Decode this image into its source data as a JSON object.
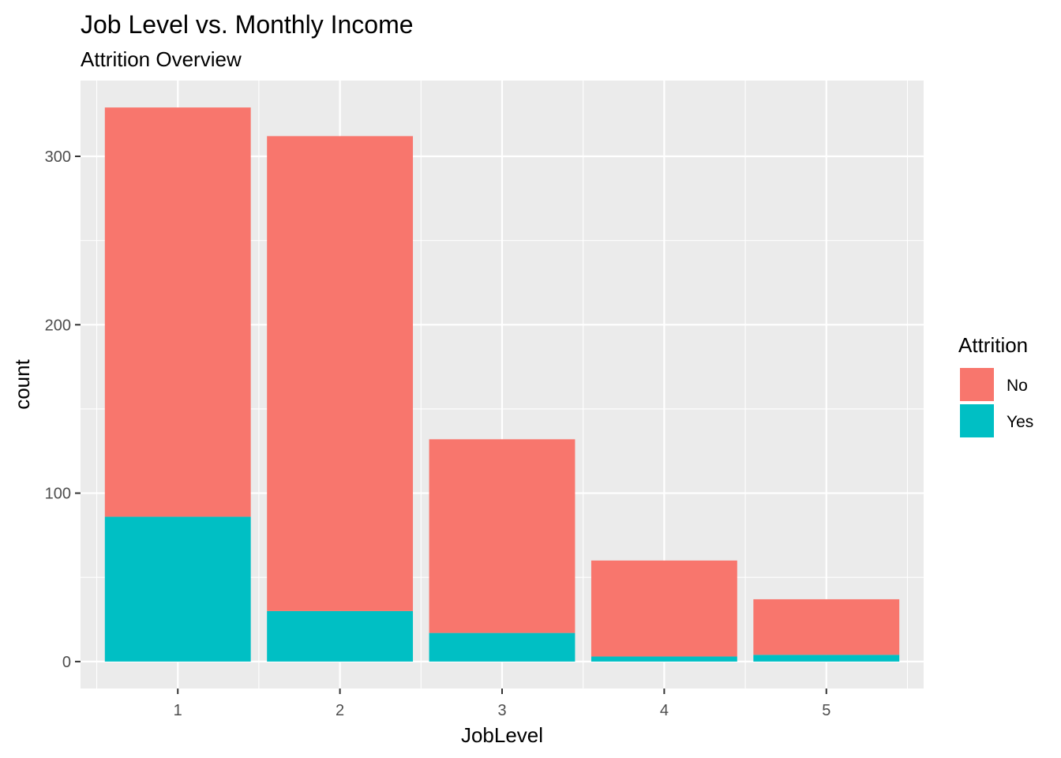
{
  "chart_data": {
    "type": "bar",
    "stacked": true,
    "title": "Job Level vs. Monthly Income",
    "subtitle": "Attrition Overview",
    "xlabel": "JobLevel",
    "ylabel": "count",
    "categories": [
      "1",
      "2",
      "3",
      "4",
      "5"
    ],
    "series": [
      {
        "name": "No",
        "color": "#F8766D",
        "values": [
          243,
          282,
          115,
          57,
          33
        ]
      },
      {
        "name": "Yes",
        "color": "#00BFC4",
        "values": [
          86,
          30,
          17,
          3,
          4
        ]
      }
    ],
    "ylim": [
      -16,
      345
    ],
    "yticks": [
      0,
      100,
      200,
      300
    ],
    "ytick_labels": [
      "0",
      "100",
      "200",
      "300"
    ],
    "grid": true,
    "legend": {
      "title": "Attrition",
      "position": "right"
    }
  }
}
